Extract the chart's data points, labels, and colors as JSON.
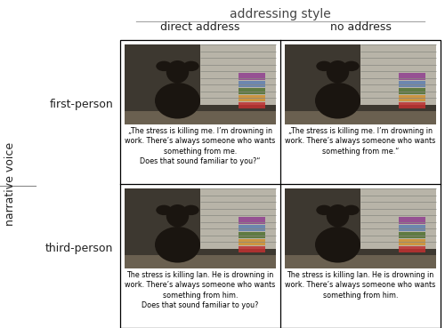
{
  "title_addressing": "addressing style",
  "col1_label": "direct address",
  "col2_label": "no address",
  "row1_label": "first-person",
  "row2_label": "third-person",
  "left_axis_label": "narrative voice",
  "text_topleft": "„The stress is killing me. I’m drowning in\nwork. There’s always someone who wants\nsomething from me.\nDoes that sound familiar to you?“",
  "text_topright": "„The stress is killing me. I’m drowning in\nwork. There’s always someone who wants\nsomething from me.“",
  "text_bottomleft": "The stress is killing Ian. He is drowning in\nwork. There’s always someone who wants\nsomething from him.\nDoes that sound familiar to you?",
  "text_bottomright": "The stress is killing Ian. He is drowning in\nwork. There’s always someone who wants\nsomething from him.",
  "bg_color": "#ffffff",
  "grid_color": "#000000",
  "text_color": "#000000",
  "label_color": "#222222",
  "header_color": "#444444",
  "photo_bg": "#3d3830",
  "photo_desk": "#6a6050",
  "photo_person": "#1a1510",
  "photo_lines": "#c8c0b0",
  "photo_window_bg": "#d0ccc0"
}
